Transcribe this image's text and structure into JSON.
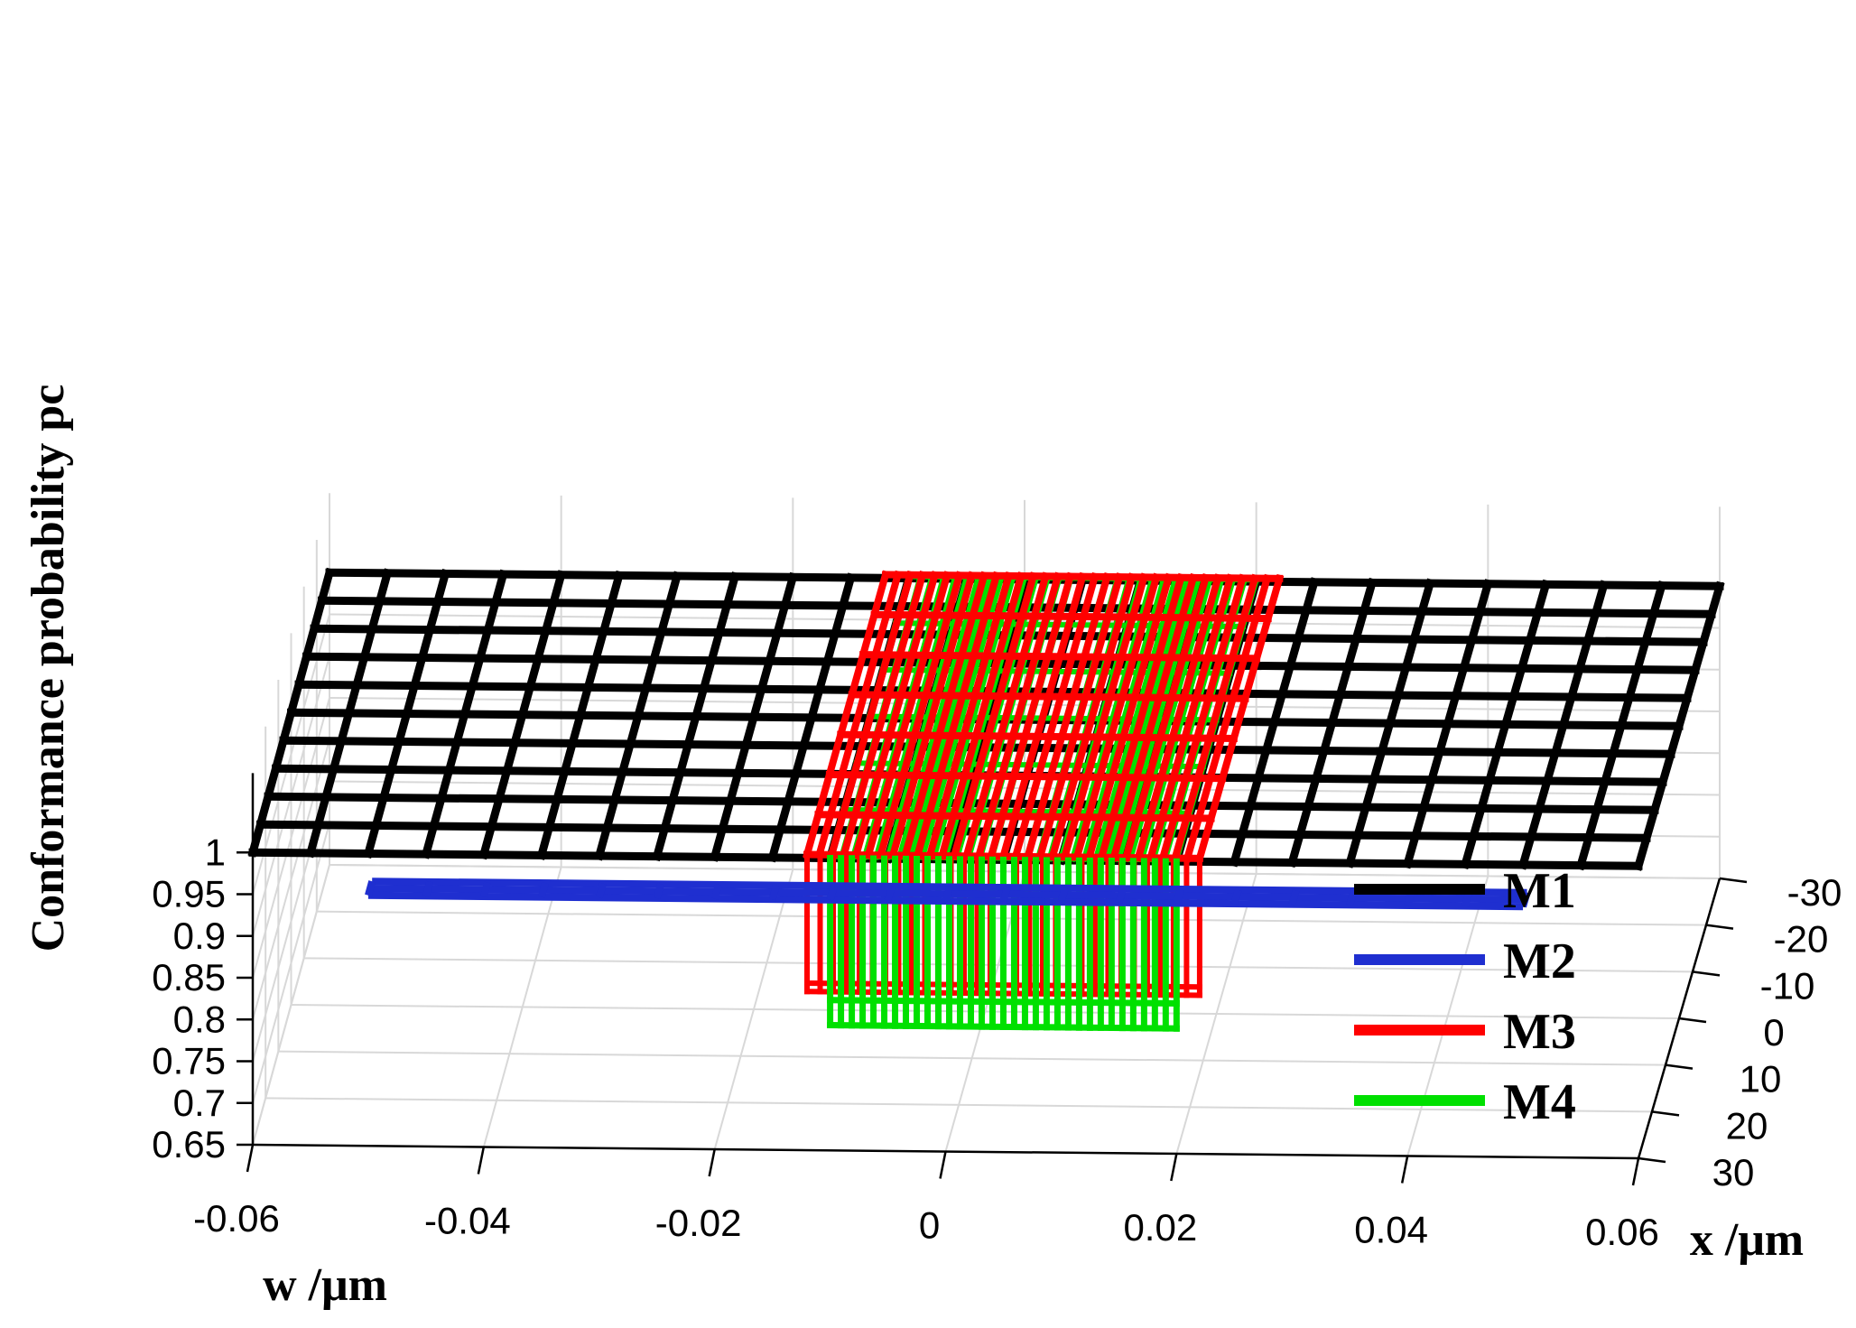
{
  "chart_data": {
    "type": "surface3d",
    "zlabel": "Conformance probability pc",
    "xlabel": "w /μm",
    "ylabel": "x /μm",
    "w_ticks": [
      "-0.06",
      "-0.04",
      "-0.02",
      "0",
      "0.02",
      "0.04",
      "0.06"
    ],
    "x_ticks": [
      "-30",
      "-20",
      "-10",
      "0",
      "10",
      "20",
      "30"
    ],
    "z_ticks": [
      "0.65",
      "0.7",
      "0.75",
      "0.8",
      "0.85",
      "0.9",
      "0.95",
      "1"
    ],
    "w_range": [
      -0.06,
      0.06
    ],
    "x_range": [
      -30,
      30
    ],
    "z_range": [
      0.65,
      1.0
    ],
    "grid": true,
    "legend_position": "bottom-right",
    "series": [
      {
        "name": "M1",
        "color": "#000000",
        "w_range": [
          -0.06,
          0.06
        ],
        "x_range": [
          -30,
          30
        ],
        "pc": 1.0
      },
      {
        "name": "M2",
        "color": "#1f2fd0",
        "w_range": [
          -0.05,
          0.05
        ],
        "x_range": [
          27,
          30
        ],
        "pc": 0.95
      },
      {
        "name": "M3",
        "color": "#ff0000",
        "w_range": [
          -0.012,
          0.022
        ],
        "x_range": [
          -30,
          30
        ],
        "pc_inside": 1.0,
        "pc_edge": 0.84
      },
      {
        "name": "M4",
        "color": "#00e000",
        "w_range": [
          -0.01,
          0.02
        ],
        "x_range": [
          -30,
          30
        ],
        "pc_inside": 1.0,
        "pc_edge": 0.8
      }
    ]
  }
}
